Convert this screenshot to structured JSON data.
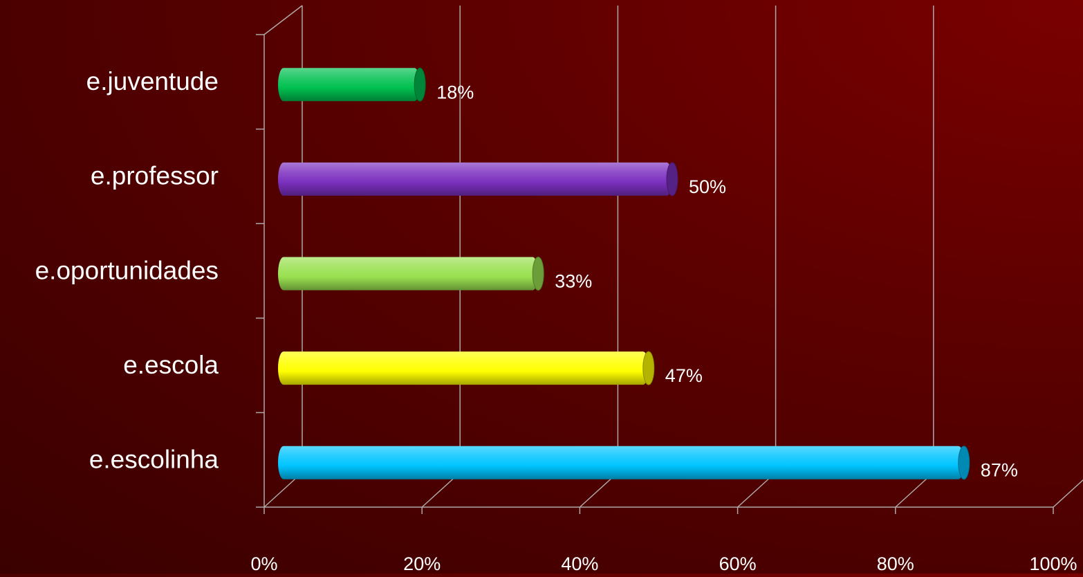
{
  "chart_data": {
    "type": "bar",
    "orientation": "horizontal",
    "style": "3d-cylinder",
    "categories": [
      "e.juventude",
      "e.professor",
      "e.oportunidades",
      "e.escola",
      "e.escolinha"
    ],
    "values": [
      18,
      50,
      33,
      47,
      87
    ],
    "value_labels": [
      "18%",
      "50%",
      "33%",
      "47%",
      "87%"
    ],
    "bar_colors": [
      "#00c050",
      "#7b2fbe",
      "#99e050",
      "#ffff00",
      "#00c4ff"
    ],
    "xlim": [
      0,
      100
    ],
    "x_ticks": [
      0,
      20,
      40,
      60,
      80,
      100
    ],
    "x_tick_labels": [
      "0%",
      "20%",
      "40%",
      "60%",
      "80%",
      "100%"
    ],
    "grid": true,
    "legend": false,
    "title": "",
    "xlabel": "",
    "ylabel": ""
  },
  "colors": {
    "background_dark": "#3a0000",
    "background_light": "#7a0000",
    "gridline": "#b0a8a8",
    "text": "#ffffff"
  }
}
